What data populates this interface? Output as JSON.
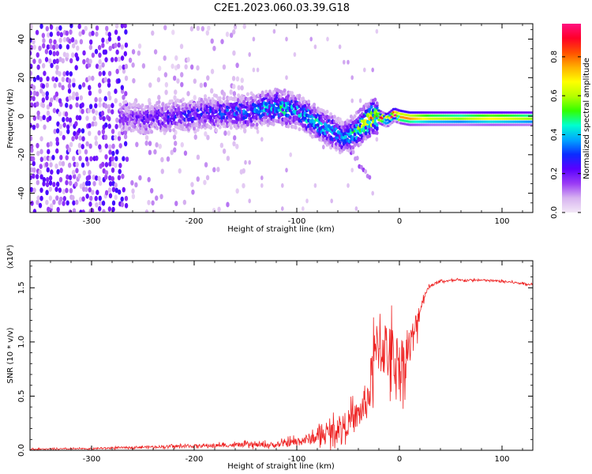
{
  "title": "C2E1.2023.060.03.39.G18",
  "chart_data": [
    {
      "type": "heatmap",
      "xlabel": "Height of straight line (km)",
      "ylabel": "Frequency (Hz)",
      "xlim": [
        -360,
        130
      ],
      "ylim": [
        -50,
        48
      ],
      "x_ticks": [
        -300,
        -200,
        -100,
        0,
        100
      ],
      "y_ticks": [
        -40,
        -20,
        0,
        20,
        40
      ],
      "colorbar": {
        "label": "Normalized spectral amplitude",
        "range": [
          0,
          0.97
        ],
        "ticks": [
          0.0,
          0.2,
          0.4,
          0.6,
          0.8
        ],
        "colors": [
          "#f3e8f7",
          "#d7b3f0",
          "#9a3cf5",
          "#5a00ff",
          "#0b2cff",
          "#00a6ff",
          "#00ffd0",
          "#32ff00",
          "#b5ff00",
          "#ffff00",
          "#ffb000",
          "#ff5000",
          "#ff0028",
          "#ff1080"
        ]
      },
      "ridge": {
        "x": [
          -270,
          -250,
          -230,
          -200,
          -170,
          -140,
          -120,
          -100,
          -85,
          -70,
          -55,
          -45,
          -35,
          -28,
          -20,
          -12,
          -5,
          0,
          10,
          30,
          60,
          90,
          130
        ],
        "y": [
          0,
          -1,
          0,
          1,
          2,
          3,
          5,
          3,
          -2,
          -6,
          -11,
          -9,
          -4,
          -1,
          0,
          -2,
          1,
          0,
          -1,
          -1,
          -1,
          -1,
          -1
        ],
        "amplitude": [
          0.15,
          0.18,
          0.2,
          0.22,
          0.25,
          0.3,
          0.4,
          0.35,
          0.35,
          0.35,
          0.3,
          0.4,
          0.5,
          0.6,
          0.7,
          0.6,
          0.75,
          0.8,
          0.8,
          0.65,
          0.6,
          0.7,
          0.6
        ]
      },
      "grid": false
    },
    {
      "type": "line",
      "xlabel": "Height of straight line (km)",
      "ylabel": "SNR (10 * v/v)",
      "y_multiplier": "(x10⁴)",
      "xlim": [
        -360,
        130
      ],
      "ylim": [
        0,
        1.75
      ],
      "x_ticks": [
        -300,
        -200,
        -100,
        0,
        100
      ],
      "y_ticks": [
        "0.0",
        "0.5",
        "1.0",
        "1.5"
      ],
      "series": [
        {
          "color": "#ee2222",
          "x": [
            -360,
            -300,
            -250,
            -200,
            -150,
            -120,
            -100,
            -80,
            -60,
            -45,
            -38,
            -30,
            -25,
            -20,
            -15,
            -10,
            -5,
            0,
            5,
            10,
            15,
            20,
            25,
            30,
            40,
            60,
            80,
            100,
            110,
            120,
            130
          ],
          "y": [
            0.01,
            0.015,
            0.03,
            0.04,
            0.05,
            0.05,
            0.08,
            0.12,
            0.2,
            0.28,
            0.35,
            0.5,
            0.8,
            1.0,
            0.95,
            0.9,
            0.85,
            0.8,
            0.85,
            0.95,
            1.1,
            1.3,
            1.45,
            1.52,
            1.56,
            1.57,
            1.57,
            1.56,
            1.55,
            1.54,
            1.53
          ],
          "noise": [
            0.01,
            0.012,
            0.02,
            0.03,
            0.04,
            0.05,
            0.08,
            0.12,
            0.2,
            0.25,
            0.28,
            0.4,
            0.55,
            0.55,
            0.55,
            0.55,
            0.55,
            0.5,
            0.45,
            0.35,
            0.3,
            0.18,
            0.05,
            0.03,
            0.02,
            0.02,
            0.02,
            0.02,
            0.02,
            0.02,
            0.02
          ]
        }
      ],
      "grid": false
    }
  ]
}
